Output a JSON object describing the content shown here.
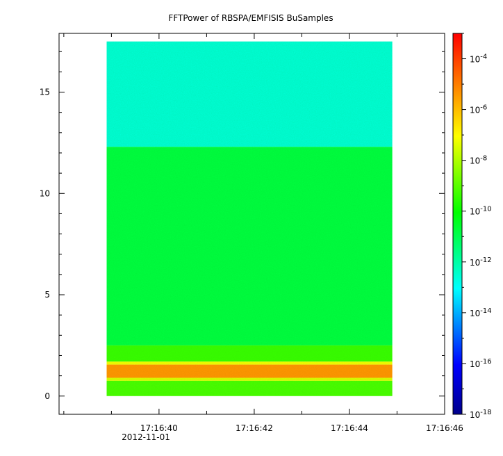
{
  "chart_data": {
    "type": "heatmap",
    "title": "FFTPower of RBSPA/EMFISIS  BuSamples",
    "xlabel": "",
    "ylabel": "",
    "x_ticks": [
      "17:16:40",
      "17:16:42",
      "17:16:44",
      "17:16:46"
    ],
    "x_tick_seconds": [
      40,
      42,
      44,
      46
    ],
    "x_date_label": "2012-11-01",
    "xlim_seconds": [
      37.9,
      46.0
    ],
    "data_time_range_seconds": [
      38.9,
      44.9
    ],
    "y_ticks": [
      0,
      5,
      10,
      15
    ],
    "ylim": [
      -0.9,
      17.9
    ],
    "data_y_range": [
      0.0,
      17.5
    ],
    "colorbar": {
      "scale": "log",
      "range": [
        1e-18,
        0.001
      ],
      "ticks": [
        "10-4",
        "10-6",
        "10-8",
        "10-10",
        "10-12",
        "10-14",
        "10-16",
        "10-18"
      ],
      "tick_exponents": [
        -4,
        -6,
        -8,
        -10,
        -12,
        -14,
        -16,
        -18
      ],
      "colormap": [
        "#00008b",
        "#0000ff",
        "#00ffff",
        "#00ff00",
        "#ffff00",
        "#ff0000"
      ]
    },
    "bands": [
      {
        "y_range": [
          12.3,
          17.5
        ],
        "log10_power": -12.6
      },
      {
        "y_range": [
          2.5,
          12.3
        ],
        "log10_power": -10.8
      },
      {
        "y_range": [
          1.7,
          2.5
        ],
        "log10_power": -9.4
      },
      {
        "y_range": [
          1.55,
          1.7
        ],
        "log10_power": -7.2
      },
      {
        "y_range": [
          0.9,
          1.55
        ],
        "log10_power": -5.4
      },
      {
        "y_range": [
          0.75,
          0.9
        ],
        "log10_power": -7.5
      },
      {
        "y_range": [
          0.0,
          0.75
        ],
        "log10_power": -9.2
      }
    ]
  }
}
